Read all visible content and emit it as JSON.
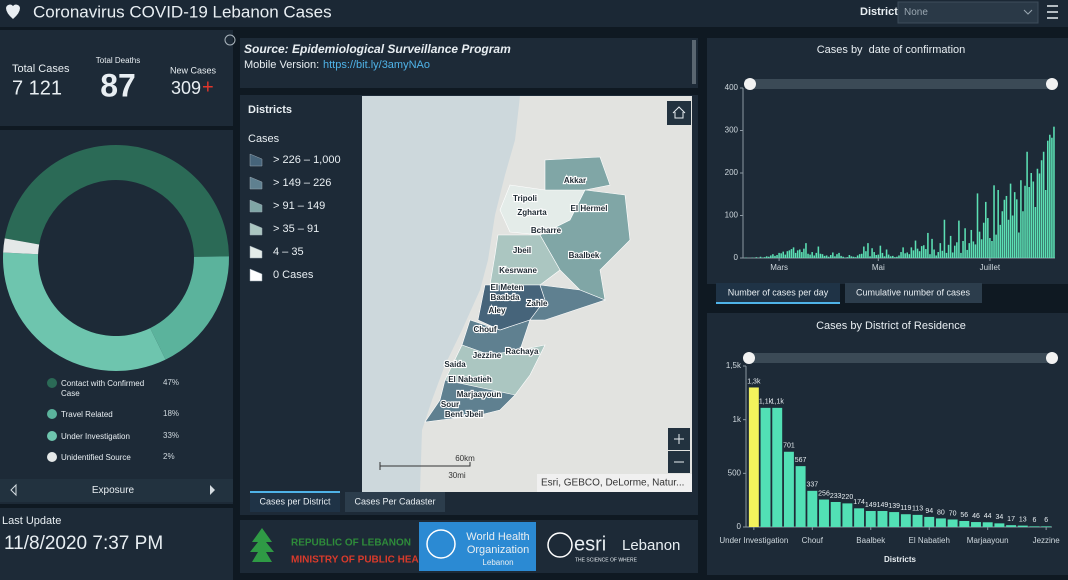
{
  "header": {
    "title": "Coronavirus COVID-19 Lebanon Cases",
    "filter_label": "District",
    "filter_value": "None"
  },
  "stats": {
    "total_cases_label": "Total Cases",
    "total_cases": "7 121",
    "total_deaths_label": "Total Deaths",
    "total_deaths": "87",
    "new_cases_label": "New Cases",
    "new_cases": "309",
    "new_cases_sign": "+"
  },
  "exposure_nav": {
    "label": "Exposure"
  },
  "last_update": {
    "label": "Last Update",
    "value": "11/8/2020 7:37 PM"
  },
  "source": {
    "title": "Source: Epidemiological Surveillance Program",
    "mobile_label": "Mobile Version:",
    "mobile_link": "https://bit.ly/3amyNAo"
  },
  "map": {
    "legend_title": "Districts",
    "legend_subtitle": "Cases",
    "classes": [
      "> 226 – 1,000",
      "> 149 – 226",
      "> 91 – 149",
      "> 35 – 91",
      "4 – 35",
      "0 Cases"
    ],
    "class_colors": [
      "#46647a",
      "#5f8090",
      "#80a6a6",
      "#abc6c1",
      "#e4ece9",
      "#ffffff"
    ],
    "labels": [
      "Akkar",
      "Tripoli",
      "Zgharta",
      "El Hermel",
      "Bcharre",
      "Jbeil",
      "Baalbek",
      "Kesrwane",
      "El Meten",
      "Baabda",
      "Zahle",
      "Aley",
      "Chouf",
      "Saida",
      "Jezzine",
      "Rachaya",
      "El Nabatieh",
      "Marjaayoun",
      "Sour",
      "Bent Jbeil"
    ],
    "scale_km": "60km",
    "scale_mi": "30mi",
    "attribution": "Esri, GEBCO, DeLorme, Natur...",
    "tabs": [
      "Cases per District",
      "Cases Per Cadaster"
    ]
  },
  "logos": {
    "moph_line1": "REPUBLIC OF LEBANON",
    "moph_line2": "MINISTRY OF PUBLIC HEALTH",
    "who_line1": "World Health",
    "who_line2": "Organization",
    "who_line3": "Lebanon",
    "esri": "esri",
    "esri_country": "Lebanon",
    "esri_tagline": "THE SCIENCE OF WHERE"
  },
  "daily_tabs": [
    "Number of cases per day",
    "Cumulative number of cases"
  ],
  "chart_data": [
    {
      "type": "pie",
      "categories": [
        "Contact with Confirmed Case",
        "Travel Related",
        "Under Investigation",
        "Unidentified Source"
      ],
      "values": [
        47,
        18,
        33,
        2
      ],
      "value_labels": [
        "47%",
        "18%",
        "33%",
        "2%"
      ],
      "colors": [
        "#2b6a56",
        "#5bb39c",
        "#6ec5ae",
        "#e4e8e8"
      ]
    },
    {
      "type": "bar",
      "title": "Cases by  date of confirmation",
      "color": "#5ce0b4",
      "grid": false,
      "ylim": [
        0,
        400
      ],
      "yticks": [
        0,
        100,
        200,
        300,
        400
      ],
      "categories": [
        null,
        null,
        null,
        null,
        null,
        null,
        null,
        null,
        null,
        null,
        null,
        null,
        null,
        null,
        null,
        null,
        "Mars",
        null,
        null,
        null,
        null,
        null,
        null,
        null,
        null,
        null,
        null,
        null,
        null,
        null,
        null,
        null,
        null,
        null,
        null,
        null,
        null,
        null,
        null,
        null,
        null,
        null,
        null,
        null,
        null,
        null,
        null,
        null,
        null,
        null,
        null,
        null,
        null,
        null,
        null,
        null,
        null,
        null,
        null,
        null,
        null,
        null,
        null,
        null,
        "Mai",
        null,
        null,
        null,
        null,
        null,
        null,
        null,
        null,
        null,
        null,
        null,
        null,
        null,
        null,
        null,
        null,
        null,
        null,
        null,
        null,
        null,
        null,
        null,
        null,
        null,
        null,
        null,
        null,
        null,
        null,
        null,
        null,
        null,
        null,
        null,
        null,
        null,
        null,
        null,
        null,
        null,
        null,
        null,
        null,
        null,
        null,
        null,
        null,
        null,
        null,
        null,
        null,
        null,
        "Juillet",
        null,
        null,
        null,
        null,
        null,
        null,
        null,
        null,
        null,
        null,
        null,
        null,
        null,
        null,
        null,
        null,
        null,
        null,
        null,
        null,
        null,
        null,
        null,
        null,
        null,
        null,
        null,
        null,
        null,
        null,
        null
      ],
      "values": [
        1,
        0,
        0,
        1,
        0,
        2,
        0,
        3,
        1,
        2,
        4,
        3,
        6,
        9,
        5,
        7,
        12,
        11,
        15,
        8,
        16,
        18,
        21,
        25,
        12,
        18,
        20,
        14,
        22,
        35,
        10,
        8,
        14,
        6,
        12,
        27,
        10,
        9,
        5,
        6,
        3,
        7,
        13,
        4,
        9,
        12,
        5,
        3,
        1,
        2,
        7,
        4,
        3,
        2,
        6,
        9,
        10,
        27,
        16,
        35,
        4,
        23,
        14,
        7,
        8,
        29,
        12,
        4,
        20,
        8,
        4,
        5,
        2,
        3,
        6,
        14,
        25,
        11,
        13,
        9,
        25,
        18,
        41,
        22,
        16,
        28,
        30,
        21,
        59,
        9,
        45,
        20,
        6,
        14,
        35,
        17,
        90,
        12,
        31,
        52,
        13,
        29,
        37,
        88,
        12,
        40,
        70,
        19,
        35,
        66,
        39,
        32,
        152,
        62,
        44,
        83,
        132,
        94,
        47,
        40,
        171,
        55,
        160,
        78,
        110,
        137,
        146,
        90,
        175,
        100,
        155,
        138,
        60,
        183,
        110,
        170,
        250,
        167,
        200,
        180,
        120,
        210,
        199,
        230,
        250,
        160,
        276,
        290,
        283,
        309
      ]
    },
    {
      "type": "bar",
      "title": "Cases by District of Residence",
      "x_label": "Districts",
      "color": "#52e0b5",
      "grid": false,
      "ylim": [
        0,
        1500
      ],
      "yticks": [
        0,
        500,
        {
          "value": 1000,
          "label": "1k"
        },
        {
          "value": 1500,
          "label": "1,5k"
        }
      ],
      "categories": [
        "Under Investigation",
        null,
        null,
        null,
        null,
        "Chouf",
        null,
        null,
        null,
        null,
        "Baalbek",
        null,
        null,
        null,
        null,
        "El Nabatieh",
        null,
        null,
        null,
        null,
        "Marjaayoun",
        null,
        null,
        null,
        null,
        "Jezzine"
      ],
      "values": [
        1300,
        1110,
        1110,
        701,
        567,
        337,
        256,
        233,
        220,
        174,
        149,
        149,
        139,
        119,
        113,
        94,
        80,
        70,
        56,
        46,
        44,
        34,
        17,
        13,
        6,
        6
      ],
      "value_labels": [
        "1,3k",
        "1,1k",
        "1,1k",
        "701",
        "567",
        "337",
        "256",
        "233",
        "220",
        "174",
        "149",
        "149",
        "139",
        "119",
        "113",
        "94",
        "80",
        "70",
        "56",
        "46",
        "44",
        "34",
        "17",
        "13",
        "6",
        "6"
      ],
      "colors": [
        "#f3f35c",
        "#52e0b5",
        "#52e0b5",
        "#52e0b5",
        "#52e0b5",
        "#52e0b5",
        "#52e0b5",
        "#52e0b5",
        "#52e0b5",
        "#52e0b5",
        "#52e0b5",
        "#52e0b5",
        "#52e0b5",
        "#52e0b5",
        "#52e0b5",
        "#52e0b5",
        "#52e0b5",
        "#52e0b5",
        "#52e0b5",
        "#52e0b5",
        "#52e0b5",
        "#52e0b5",
        "#52e0b5",
        "#52e0b5",
        "#52e0b5",
        "#52e0b5"
      ]
    }
  ]
}
